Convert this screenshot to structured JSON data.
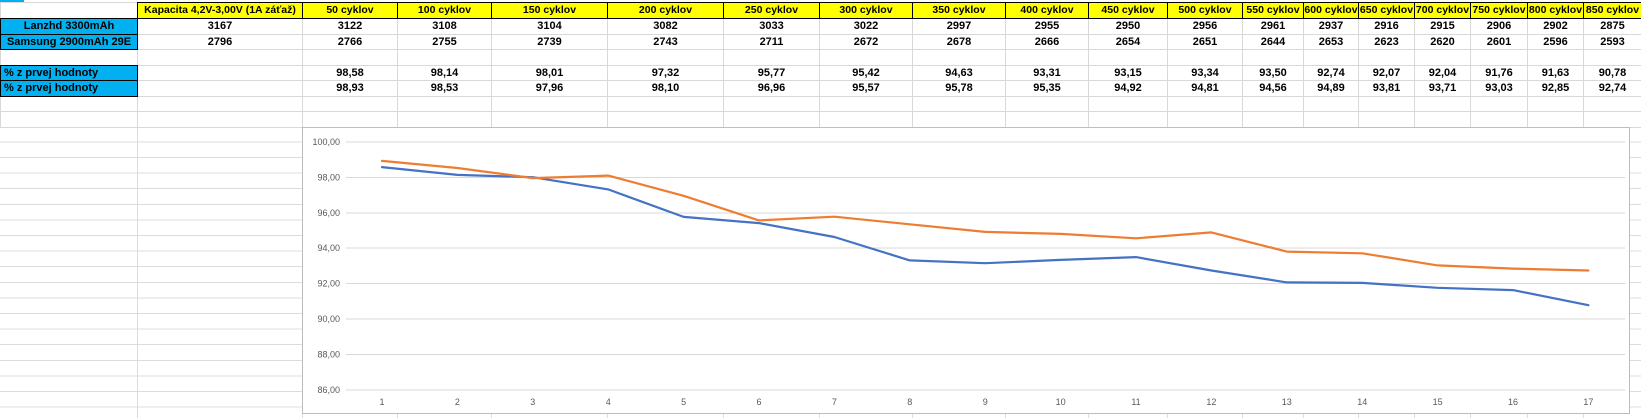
{
  "table": {
    "capacity_header": "Kapacita 4,2V-3,00V (1A záťaž)",
    "cycle_headers": [
      "50 cyklov",
      "100 cyklov",
      "150  cyklov",
      "200 cyklov",
      "250 cyklov",
      "300 cyklov",
      "350 cyklov",
      "400 cyklov",
      "450 cyklov",
      "500 cyklov",
      "550 cyklov",
      "600 cyklov",
      "650 cyklov",
      "700 cyklov",
      "750 cyklov",
      "800 cyklov",
      "850 cyklov"
    ],
    "data_rows": [
      {
        "label": "Lanzhd 3300mAh",
        "capacity": "3167",
        "values": [
          "3122",
          "3108",
          "3104",
          "3082",
          "3033",
          "3022",
          "2997",
          "2955",
          "2950",
          "2956",
          "2961",
          "2937",
          "2916",
          "2915",
          "2906",
          "2902",
          "2875"
        ]
      },
      {
        "label": "Samsung 2900mAh 29E",
        "capacity": "2796",
        "values": [
          "2766",
          "2755",
          "2739",
          "2743",
          "2711",
          "2672",
          "2678",
          "2666",
          "2654",
          "2651",
          "2644",
          "2653",
          "2623",
          "2620",
          "2601",
          "2596",
          "2593"
        ]
      }
    ],
    "percent_rows": [
      {
        "label": "%  z prvej hodnoty",
        "values": [
          "98,58",
          "98,14",
          "98,01",
          "97,32",
          "95,77",
          "95,42",
          "94,63",
          "93,31",
          "93,15",
          "93,34",
          "93,50",
          "92,74",
          "92,07",
          "92,04",
          "91,76",
          "91,63",
          "90,78"
        ]
      },
      {
        "label": "%  z prvej hodnoty",
        "values": [
          "98,93",
          "98,53",
          "97,96",
          "98,10",
          "96,96",
          "95,57",
          "95,78",
          "95,35",
          "94,92",
          "94,81",
          "94,56",
          "94,89",
          "93,81",
          "93,71",
          "93,03",
          "92,85",
          "92,74"
        ]
      }
    ]
  },
  "colors": {
    "header_bg": "#FFFF00",
    "label_bg": "#00B0F0",
    "series_blue": "#4472C4",
    "series_orange": "#ED7D31",
    "chart_grid": "#D9D9D9",
    "axis_text": "#595959"
  },
  "chart_data": {
    "type": "line",
    "title": "",
    "legend": "none",
    "grid": "horizontal",
    "x": [
      "1",
      "2",
      "3",
      "4",
      "5",
      "6",
      "7",
      "8",
      "9",
      "10",
      "11",
      "12",
      "13",
      "14",
      "15",
      "16",
      "17"
    ],
    "ylim": [
      86,
      100
    ],
    "ytick_step": 2,
    "ytick_labels": [
      "100,00",
      "98,00",
      "96,00",
      "94,00",
      "92,00",
      "90,00",
      "88,00",
      "86,00"
    ],
    "series": [
      {
        "name": "Lanzhd 3300mAh",
        "color": "#4472C4",
        "values": [
          98.58,
          98.14,
          98.01,
          97.32,
          95.77,
          95.42,
          94.63,
          93.31,
          93.15,
          93.34,
          93.5,
          92.74,
          92.07,
          92.04,
          91.76,
          91.63,
          90.78
        ]
      },
      {
        "name": "Samsung 2900mAh 29E",
        "color": "#ED7D31",
        "values": [
          98.93,
          98.53,
          97.96,
          98.1,
          96.96,
          95.57,
          95.78,
          95.35,
          94.92,
          94.81,
          94.56,
          94.89,
          93.81,
          93.71,
          93.03,
          92.85,
          92.74
        ]
      }
    ]
  }
}
